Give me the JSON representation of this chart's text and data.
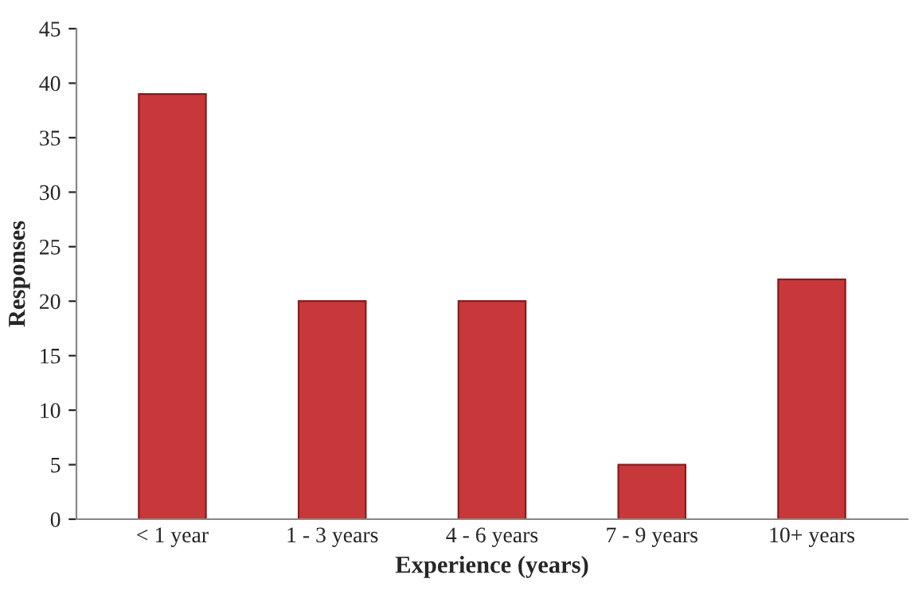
{
  "chart_data": {
    "type": "bar",
    "xlabel": "Experience (years)",
    "ylabel": "Responses",
    "categories": [
      "< 1 year",
      "1 - 3 years",
      "4 - 6 years",
      "7 - 9 years",
      "10+ years"
    ],
    "values": [
      39,
      20,
      20,
      5,
      22
    ],
    "color": "#c8383a",
    "ylim": [
      0,
      45
    ],
    "yticks": [
      0,
      5,
      10,
      15,
      20,
      25,
      30,
      35,
      40,
      45
    ],
    "grid": false,
    "legend": false
  }
}
